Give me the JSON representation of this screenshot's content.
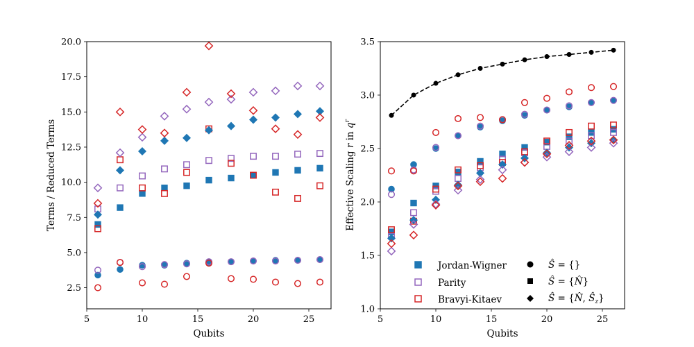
{
  "colors": {
    "jw": "#1f77b4",
    "parity": "#9467bd",
    "bk": "#d62728",
    "black": "#000000"
  },
  "chart_data": [
    {
      "type": "scatter",
      "title": "",
      "xlabel": "Qubits",
      "ylabel": "Terms / Reduced Terms",
      "xlim": [
        5,
        27
      ],
      "ylim": [
        1.0,
        20.0
      ],
      "xticks": [
        "5",
        "10",
        "15",
        "20",
        "25"
      ],
      "yticks": [
        "2.5",
        "5.0",
        "7.5",
        "10.0",
        "12.5",
        "15.0",
        "17.5",
        "20.0"
      ],
      "x": [
        6,
        8,
        10,
        12,
        14,
        16,
        18,
        20,
        22,
        24,
        26
      ],
      "series": [
        {
          "name": "Jordan-Wigner",
          "symmetry": "S={}",
          "color": "#1f77b4",
          "marker": "circle",
          "filled": true,
          "values": [
            3.4,
            3.8,
            4.1,
            4.1,
            4.25,
            4.3,
            4.35,
            4.4,
            4.45,
            4.45,
            4.5
          ]
        },
        {
          "name": "Parity",
          "symmetry": "S={}",
          "color": "#9467bd",
          "marker": "circle",
          "filled": false,
          "values": [
            3.75,
            4.3,
            4.0,
            4.15,
            4.2,
            4.35,
            4.35,
            4.4,
            4.4,
            4.45,
            4.5
          ]
        },
        {
          "name": "Bravyi-Kitaev",
          "symmetry": "S={}",
          "color": "#d62728",
          "marker": "circle",
          "filled": false,
          "values": [
            2.5,
            4.3,
            2.85,
            2.75,
            3.3,
            4.25,
            3.15,
            3.1,
            2.9,
            2.8,
            2.9
          ]
        },
        {
          "name": "Jordan-Wigner",
          "symmetry": "S={N}",
          "color": "#1f77b4",
          "marker": "square",
          "filled": true,
          "values": [
            7.0,
            8.2,
            9.2,
            9.6,
            9.75,
            10.15,
            10.3,
            10.5,
            10.7,
            10.85,
            11.0
          ]
        },
        {
          "name": "Parity",
          "symmetry": "S={N}",
          "color": "#9467bd",
          "marker": "square",
          "filled": false,
          "values": [
            8.1,
            9.6,
            10.45,
            10.95,
            11.25,
            11.55,
            11.7,
            11.85,
            11.85,
            12.0,
            12.05
          ]
        },
        {
          "name": "Bravyi-Kitaev",
          "symmetry": "S={N}",
          "color": "#d62728",
          "marker": "square",
          "filled": false,
          "values": [
            6.7,
            11.6,
            9.6,
            9.2,
            10.7,
            13.8,
            11.35,
            10.5,
            9.3,
            8.85,
            9.75
          ]
        },
        {
          "name": "Jordan-Wigner",
          "symmetry": "S={N,Sz}",
          "color": "#1f77b4",
          "marker": "diamond",
          "filled": true,
          "values": [
            7.7,
            10.85,
            12.2,
            12.95,
            13.15,
            13.7,
            14.0,
            14.45,
            14.6,
            14.85,
            15.05
          ]
        },
        {
          "name": "Parity",
          "symmetry": "S={N,Sz}",
          "color": "#9467bd",
          "marker": "diamond",
          "filled": false,
          "values": [
            9.6,
            12.1,
            13.2,
            14.7,
            15.2,
            15.7,
            15.9,
            16.4,
            16.5,
            16.85,
            16.85
          ]
        },
        {
          "name": "Bravyi-Kitaev",
          "symmetry": "S={N,Sz}",
          "color": "#d62728",
          "marker": "diamond",
          "filled": false,
          "values": [
            8.5,
            15.0,
            13.75,
            13.5,
            16.4,
            19.7,
            16.3,
            15.1,
            13.8,
            13.4,
            14.6
          ]
        }
      ]
    },
    {
      "type": "scatter",
      "title": "",
      "xlabel": "Qubits",
      "ylabel": "Effective Scaling r in q^r",
      "xlim": [
        5,
        27
      ],
      "ylim": [
        1.0,
        3.5
      ],
      "xticks": [
        "5",
        "10",
        "15",
        "20",
        "25"
      ],
      "yticks": [
        "1.0",
        "1.5",
        "2.0",
        "2.5",
        "3.0",
        "3.5"
      ],
      "x": [
        6,
        8,
        10,
        12,
        14,
        16,
        18,
        20,
        22,
        24,
        26
      ],
      "series": [
        {
          "name": "Reference",
          "color": "#000000",
          "marker": "circle",
          "filled": true,
          "dashed_line": true,
          "values": [
            2.81,
            3.0,
            3.11,
            3.19,
            3.25,
            3.29,
            3.33,
            3.36,
            3.38,
            3.4,
            3.42
          ]
        },
        {
          "name": "Jordan-Wigner",
          "symmetry": "S={}",
          "color": "#1f77b4",
          "marker": "circle",
          "filled": true,
          "values": [
            2.12,
            2.35,
            2.5,
            2.62,
            2.7,
            2.76,
            2.81,
            2.86,
            2.89,
            2.93,
            2.95
          ]
        },
        {
          "name": "Parity",
          "symmetry": "S={}",
          "color": "#9467bd",
          "marker": "circle",
          "filled": false,
          "values": [
            2.07,
            2.3,
            2.51,
            2.62,
            2.71,
            2.77,
            2.82,
            2.86,
            2.9,
            2.93,
            2.95
          ]
        },
        {
          "name": "Bravyi-Kitaev",
          "symmetry": "S={}",
          "color": "#d62728",
          "marker": "circle",
          "filled": false,
          "values": [
            2.29,
            2.29,
            2.65,
            2.78,
            2.79,
            2.77,
            2.93,
            2.97,
            3.03,
            3.07,
            3.08
          ]
        },
        {
          "name": "Jordan-Wigner",
          "symmetry": "S={N}",
          "color": "#1f77b4",
          "marker": "square",
          "filled": true,
          "values": [
            1.72,
            1.99,
            2.15,
            2.28,
            2.38,
            2.45,
            2.51,
            2.56,
            2.61,
            2.65,
            2.68
          ]
        },
        {
          "name": "Parity",
          "symmetry": "S={N}",
          "color": "#9467bd",
          "marker": "square",
          "filled": false,
          "values": [
            1.68,
            1.9,
            2.1,
            2.22,
            2.32,
            2.4,
            2.46,
            2.52,
            2.57,
            2.62,
            2.65
          ]
        },
        {
          "name": "Bravyi-Kitaev",
          "symmetry": "S={N}",
          "color": "#d62728",
          "marker": "square",
          "filled": false,
          "values": [
            1.74,
            1.82,
            2.12,
            2.3,
            2.34,
            2.37,
            2.47,
            2.57,
            2.65,
            2.71,
            2.72
          ]
        },
        {
          "name": "Jordan-Wigner",
          "symmetry": "S={N,Sz}",
          "color": "#1f77b4",
          "marker": "diamond",
          "filled": true,
          "values": [
            1.66,
            1.83,
            2.02,
            2.16,
            2.27,
            2.35,
            2.41,
            2.46,
            2.51,
            2.55,
            2.58
          ]
        },
        {
          "name": "Parity",
          "symmetry": "S={N,Sz}",
          "color": "#9467bd",
          "marker": "diamond",
          "filled": false,
          "values": [
            1.54,
            1.79,
            1.98,
            2.11,
            2.21,
            2.3,
            2.37,
            2.42,
            2.47,
            2.51,
            2.55
          ]
        },
        {
          "name": "Bravyi-Kitaev",
          "symmetry": "S={N,Sz}",
          "color": "#d62728",
          "marker": "diamond",
          "filled": false,
          "values": [
            1.61,
            1.69,
            1.97,
            2.15,
            2.19,
            2.22,
            2.37,
            2.45,
            2.53,
            2.57,
            2.58
          ]
        }
      ],
      "legend": {
        "position": "lower-right",
        "encodings": [
          {
            "label": "Jordan-Wigner",
            "color": "#1f77b4",
            "marker": "square",
            "filled": true
          },
          {
            "label": "Parity",
            "color": "#9467bd",
            "marker": "square",
            "filled": false
          },
          {
            "label": "Bravyi-Kitaev",
            "color": "#d62728",
            "marker": "square",
            "filled": false
          }
        ],
        "symmetries": [
          {
            "marker": "circle",
            "label": "S = {}"
          },
          {
            "marker": "square",
            "label": "S = {N}"
          },
          {
            "marker": "diamond",
            "label": "S = {N, Sz}"
          }
        ]
      }
    }
  ]
}
